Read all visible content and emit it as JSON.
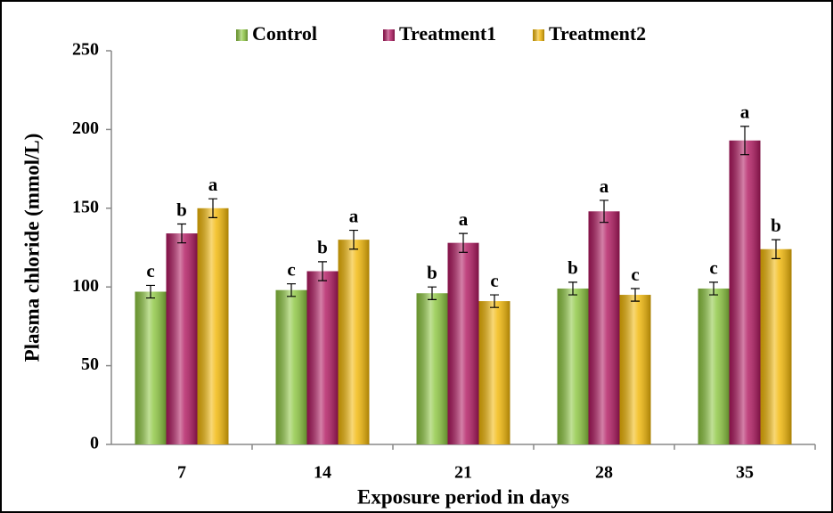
{
  "chart_data": {
    "type": "bar",
    "x_label": "Exposure period in days",
    "y_label": "Plasma chloride (mmol/L)",
    "categories": [
      "7",
      "14",
      "21",
      "28",
      "35"
    ],
    "series": [
      {
        "name": "Control",
        "color": "#8cc63f",
        "values": [
          97,
          98,
          96,
          99,
          99
        ],
        "errors": [
          4,
          4,
          4,
          4,
          4
        ],
        "letters": [
          "c",
          "c",
          "b",
          "b",
          "c"
        ]
      },
      {
        "name": "Treatment1",
        "color": "#b0175f",
        "values": [
          134,
          110,
          128,
          148,
          193
        ],
        "errors": [
          6,
          6,
          6,
          7,
          9
        ],
        "letters": [
          "b",
          "b",
          "a",
          "a",
          "a"
        ]
      },
      {
        "name": "Treatment2",
        "color": "#f2b705",
        "values": [
          150,
          130,
          91,
          95,
          124
        ],
        "errors": [
          6,
          6,
          4,
          4,
          6
        ],
        "letters": [
          "a",
          "a",
          "c",
          "c",
          "b"
        ]
      }
    ],
    "ylim": [
      0,
      250
    ],
    "yticks": [
      0,
      50,
      100,
      150,
      200,
      250
    ],
    "legend": "top"
  }
}
